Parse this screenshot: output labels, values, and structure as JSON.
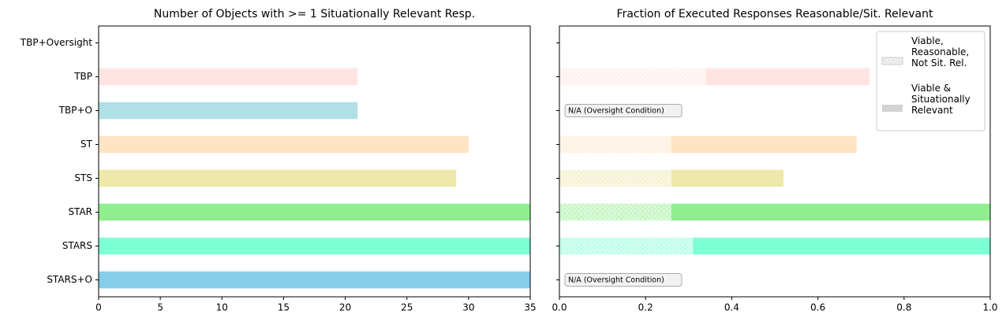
{
  "chart_data": [
    {
      "type": "bar",
      "title": "Number of Objects with >= 1 Situationally Relevant Resp.",
      "categories": [
        "TBP+Oversight",
        "TBP",
        "TBP+O",
        "ST",
        "STS",
        "STAR",
        "STARS",
        "STARS+O"
      ],
      "values": [
        0,
        21,
        21,
        30,
        29,
        35,
        35,
        35
      ],
      "colors": [
        null,
        "#ffe4e1",
        "#b0e0e6",
        "#ffe4c4",
        "#eee8aa",
        "#90ee90",
        "#7fffd4",
        "#87ceeb"
      ],
      "xlim": [
        0,
        35
      ],
      "xticks": [
        0,
        5,
        10,
        15,
        20,
        25,
        30,
        35
      ]
    },
    {
      "type": "stacked_bar",
      "title": "Fraction of Executed Responses Reasonable/Sit. Relevant",
      "categories": [
        "TBP+Oversight",
        "TBP",
        "TBP+O",
        "ST",
        "STS",
        "STAR",
        "STARS",
        "STARS+O"
      ],
      "colors": [
        null,
        "#ffe4e1",
        "#b0e0e6",
        "#ffe4c4",
        "#eee8aa",
        "#90ee90",
        "#7fffd4",
        "#87ceeb"
      ],
      "series": [
        {
          "name": "Viable,\nReasonable,\nNot Sit. Rel.",
          "color": "#d3d3d3",
          "hatch": true,
          "values": [
            null,
            0.34,
            null,
            0.26,
            0.26,
            0.26,
            0.31,
            null
          ]
        },
        {
          "name": "Viable &\nSituationally\nRelevant",
          "color": "#d3d3d3",
          "hatch": false,
          "values": [
            null,
            0.38,
            null,
            0.43,
            0.26,
            0.74,
            0.69,
            null
          ]
        }
      ],
      "annotations": [
        {
          "text": "N/A (Oversight Condition)",
          "category": "TBP+O"
        },
        {
          "text": "N/A (Oversight Condition)",
          "category": "STARS+O"
        }
      ],
      "legend": "upper right",
      "xlim": [
        0,
        1
      ],
      "xticks": [
        {
          "value": 0,
          "label": "0.0"
        },
        0.2,
        0.4,
        0.6,
        0.8,
        {
          "value": 1,
          "label": "1.0"
        }
      ]
    }
  ]
}
